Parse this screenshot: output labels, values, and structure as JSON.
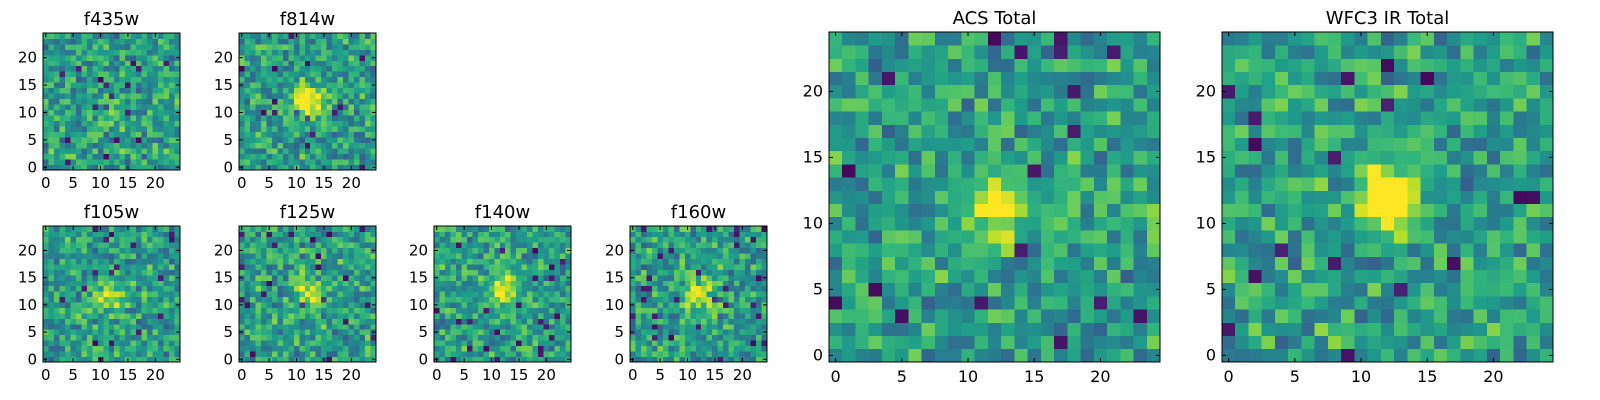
{
  "figure": "multi-panel pixel image grid",
  "chart_data": [
    {
      "type": "heatmap",
      "name": "f435w",
      "title": "f435w",
      "grid": [
        25,
        25
      ],
      "xlim": [
        -0.5,
        24.5
      ],
      "ylim": [
        -0.5,
        24.5
      ],
      "xticks": [
        0,
        5,
        10,
        15,
        20
      ],
      "yticks": [
        0,
        5,
        10,
        15,
        20
      ],
      "xtick_labels": [
        "0",
        "5",
        "10",
        "15",
        "20"
      ],
      "ytick_labels": [
        "0",
        "5",
        "10",
        "15",
        "20"
      ],
      "colormap": "viridis",
      "source": [
        12,
        11
      ],
      "source_strength": 0.15,
      "seed": 11
    },
    {
      "type": "heatmap",
      "name": "f814w",
      "title": "f814w",
      "grid": [
        25,
        25
      ],
      "xlim": [
        -0.5,
        24.5
      ],
      "ylim": [
        -0.5,
        24.5
      ],
      "xticks": [
        0,
        5,
        10,
        15,
        20
      ],
      "yticks": [
        0,
        5,
        10,
        15,
        20
      ],
      "xtick_labels": [
        "0",
        "5",
        "10",
        "15",
        "20"
      ],
      "ytick_labels": [
        "0",
        "5",
        "10",
        "15",
        "20"
      ],
      "colormap": "viridis",
      "source": [
        12,
        12
      ],
      "source_strength": 0.55,
      "seed": 23
    },
    {
      "type": "heatmap",
      "name": "f105w",
      "title": "f105w",
      "grid": [
        25,
        25
      ],
      "xlim": [
        -0.5,
        24.5
      ],
      "ylim": [
        -0.5,
        24.5
      ],
      "xticks": [
        0,
        5,
        10,
        15,
        20
      ],
      "yticks": [
        0,
        5,
        10,
        15,
        20
      ],
      "xtick_labels": [
        "0",
        "5",
        "10",
        "15",
        "20"
      ],
      "ytick_labels": [
        "0",
        "5",
        "10",
        "15",
        "20"
      ],
      "colormap": "viridis",
      "source": [
        12,
        12
      ],
      "source_strength": 0.3,
      "seed": 37
    },
    {
      "type": "heatmap",
      "name": "f125w",
      "title": "f125w",
      "grid": [
        25,
        25
      ],
      "xlim": [
        -0.5,
        24.5
      ],
      "ylim": [
        -0.5,
        24.5
      ],
      "xticks": [
        0,
        5,
        10,
        15,
        20
      ],
      "yticks": [
        0,
        5,
        10,
        15,
        20
      ],
      "xtick_labels": [
        "0",
        "5",
        "10",
        "15",
        "20"
      ],
      "ytick_labels": [
        "0",
        "5",
        "10",
        "15",
        "20"
      ],
      "colormap": "viridis",
      "source": [
        12,
        12
      ],
      "source_strength": 0.3,
      "seed": 41
    },
    {
      "type": "heatmap",
      "name": "f140w",
      "title": "f140w",
      "grid": [
        25,
        25
      ],
      "xlim": [
        -0.5,
        24.5
      ],
      "ylim": [
        -0.5,
        24.5
      ],
      "xticks": [
        0,
        5,
        10,
        15,
        20
      ],
      "yticks": [
        0,
        5,
        10,
        15,
        20
      ],
      "xtick_labels": [
        "0",
        "5",
        "10",
        "15",
        "20"
      ],
      "ytick_labels": [
        "0",
        "5",
        "10",
        "15",
        "20"
      ],
      "colormap": "viridis",
      "source": [
        12,
        13
      ],
      "source_strength": 0.4,
      "seed": 53
    },
    {
      "type": "heatmap",
      "name": "f160w",
      "title": "f160w",
      "grid": [
        25,
        25
      ],
      "xlim": [
        -0.5,
        24.5
      ],
      "ylim": [
        -0.5,
        24.5
      ],
      "xticks": [
        0,
        5,
        10,
        15,
        20
      ],
      "yticks": [
        0,
        5,
        10,
        15,
        20
      ],
      "xtick_labels": [
        "0",
        "5",
        "10",
        "15",
        "20"
      ],
      "ytick_labels": [
        "0",
        "5",
        "10",
        "15",
        "20"
      ],
      "colormap": "viridis",
      "source": [
        12,
        12
      ],
      "source_strength": 0.4,
      "seed": 67
    },
    {
      "type": "heatmap",
      "name": "acs-total",
      "title": "ACS Total",
      "grid": [
        25,
        25
      ],
      "xlim": [
        -0.5,
        24.5
      ],
      "ylim": [
        -0.5,
        24.5
      ],
      "xticks": [
        0,
        5,
        10,
        15,
        20
      ],
      "yticks": [
        0,
        5,
        10,
        15,
        20
      ],
      "xtick_labels": [
        "0",
        "5",
        "10",
        "15",
        "20"
      ],
      "ytick_labels": [
        "0",
        "5",
        "10",
        "15",
        "20"
      ],
      "colormap": "viridis",
      "source": [
        12,
        11
      ],
      "source_strength": 0.5,
      "seed": 79
    },
    {
      "type": "heatmap",
      "name": "wfc3-ir-total",
      "title": "WFC3 IR Total",
      "grid": [
        25,
        25
      ],
      "xlim": [
        -0.5,
        24.5
      ],
      "ylim": [
        -0.5,
        24.5
      ],
      "xticks": [
        0,
        5,
        10,
        15,
        20
      ],
      "yticks": [
        0,
        5,
        10,
        15,
        20
      ],
      "xtick_labels": [
        "0",
        "5",
        "10",
        "15",
        "20"
      ],
      "ytick_labels": [
        "0",
        "5",
        "10",
        "15",
        "20"
      ],
      "colormap": "viridis",
      "source": [
        12,
        12
      ],
      "source_strength": 0.75,
      "seed": 97
    }
  ]
}
